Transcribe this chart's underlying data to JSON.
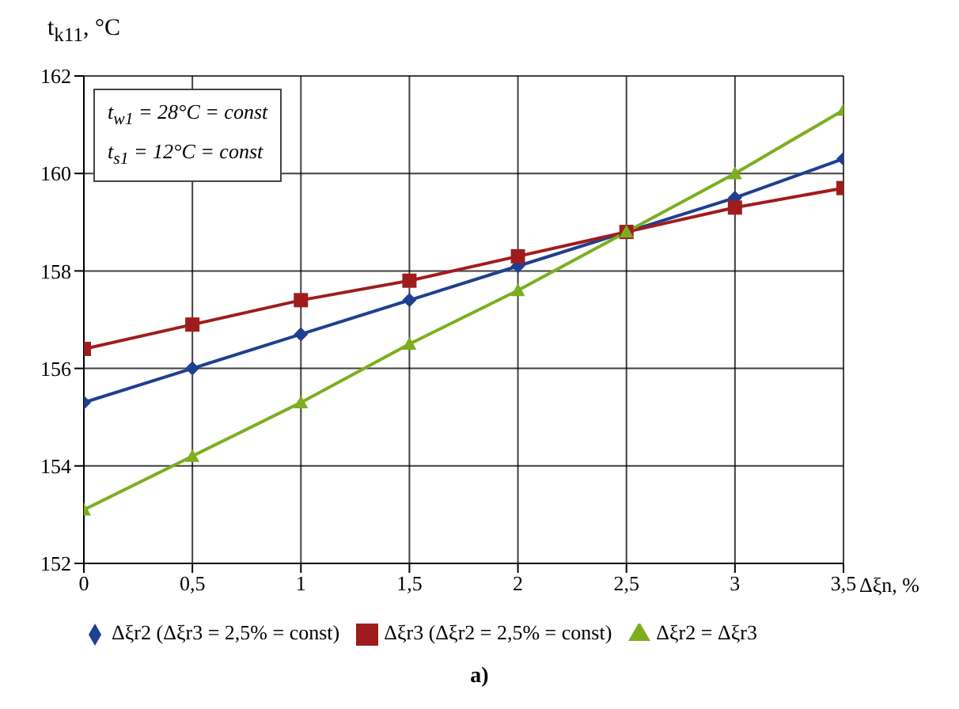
{
  "chart_data": {
    "type": "line",
    "ylabel": "t$_{k11}$, °C",
    "xlabel": "Δξn, %",
    "x": [
      0,
      0.5,
      1,
      1.5,
      2,
      2.5,
      3,
      3.5
    ],
    "xlim": [
      0,
      3.5
    ],
    "xticks": [
      {
        "value": 0,
        "label": "0"
      },
      {
        "value": 0.5,
        "label": "0,5"
      },
      {
        "value": 1,
        "label": "1"
      },
      {
        "value": 1.5,
        "label": "1,5"
      },
      {
        "value": 2,
        "label": "2"
      },
      {
        "value": 2.5,
        "label": "2,5"
      },
      {
        "value": 3,
        "label": "3"
      },
      {
        "value": 3.5,
        "label": "3,5"
      }
    ],
    "ylim": [
      152,
      162
    ],
    "yticks": [
      152,
      154,
      156,
      158,
      160,
      162
    ],
    "series": [
      {
        "name": "Δξr2 (Δξr3 = 2,5% = const)",
        "color": "#1f3f8f",
        "marker": "diamond",
        "values": [
          155.3,
          156.0,
          156.7,
          157.4,
          158.1,
          158.8,
          159.5,
          160.3
        ]
      },
      {
        "name": "Δξr3 (Δξr2 = 2,5% = const)",
        "color": "#a01c1c",
        "marker": "square",
        "values": [
          156.4,
          156.9,
          157.4,
          157.8,
          158.3,
          158.8,
          159.3,
          159.7
        ]
      },
      {
        "name": "Δξr2 = Δξr3",
        "color": "#7cae1e",
        "marker": "triangle",
        "values": [
          153.1,
          154.2,
          155.3,
          156.5,
          157.6,
          158.8,
          160.0,
          161.3
        ]
      }
    ],
    "grid": true,
    "legend": "bottom",
    "line_style": "solid",
    "annotations": [
      "t$_{w1}$ = 28°C = const\nt$_{s1}$ = 12°C = const",
      "a)"
    ]
  }
}
